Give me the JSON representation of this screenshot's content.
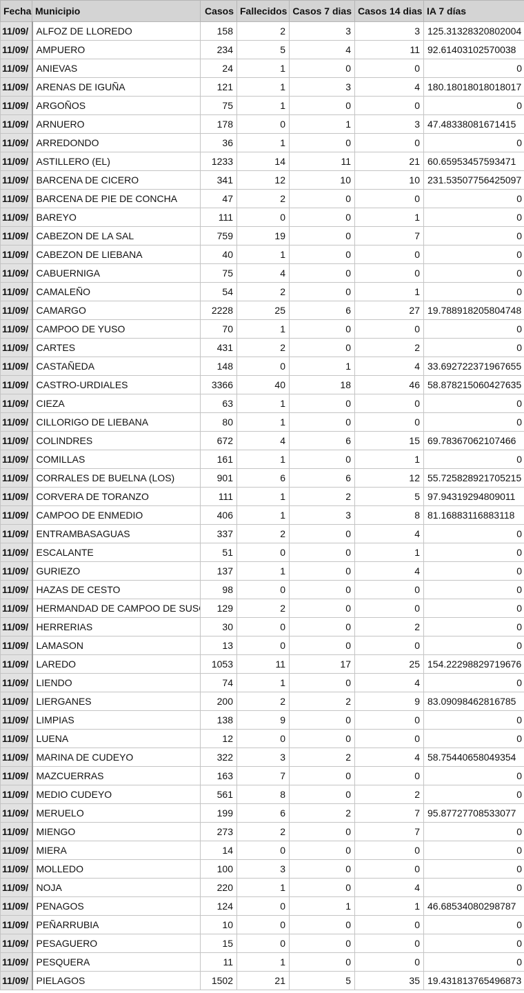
{
  "headers": [
    "Fecha",
    "Municipio",
    "Casos",
    "Fallecidos",
    "Casos 7 dias",
    "Casos 14 dias",
    "IA 7 días"
  ],
  "rows": [
    [
      "11/09/",
      "ALFOZ DE LLOREDO",
      "158",
      "2",
      "3",
      "3",
      "125.31328320802004"
    ],
    [
      "11/09/",
      "AMPUERO",
      "234",
      "5",
      "4",
      "11",
      "92.61403102570038"
    ],
    [
      "11/09/",
      "ANIEVAS",
      "24",
      "1",
      "0",
      "0",
      "0"
    ],
    [
      "11/09/",
      "ARENAS DE IGUÑA",
      "121",
      "1",
      "3",
      "4",
      "180.18018018018017"
    ],
    [
      "11/09/",
      "ARGOÑOS",
      "75",
      "1",
      "0",
      "0",
      "0"
    ],
    [
      "11/09/",
      "ARNUERO",
      "178",
      "0",
      "1",
      "3",
      "47.48338081671415"
    ],
    [
      "11/09/",
      "ARREDONDO",
      "36",
      "1",
      "0",
      "0",
      "0"
    ],
    [
      "11/09/",
      "ASTILLERO (EL)",
      "1233",
      "14",
      "11",
      "21",
      "60.65953457593471"
    ],
    [
      "11/09/",
      "BARCENA DE CICERO",
      "341",
      "12",
      "10",
      "10",
      "231.53507756425097"
    ],
    [
      "11/09/",
      "BARCENA DE PIE DE CONCHA",
      "47",
      "2",
      "0",
      "0",
      "0"
    ],
    [
      "11/09/",
      "BAREYO",
      "111",
      "0",
      "0",
      "1",
      "0"
    ],
    [
      "11/09/",
      "CABEZON DE LA SAL",
      "759",
      "19",
      "0",
      "7",
      "0"
    ],
    [
      "11/09/",
      "CABEZON DE LIEBANA",
      "40",
      "1",
      "0",
      "0",
      "0"
    ],
    [
      "11/09/",
      "CABUERNIGA",
      "75",
      "4",
      "0",
      "0",
      "0"
    ],
    [
      "11/09/",
      "CAMALEÑO",
      "54",
      "2",
      "0",
      "1",
      "0"
    ],
    [
      "11/09/",
      "CAMARGO",
      "2228",
      "25",
      "6",
      "27",
      "19.788918205804748"
    ],
    [
      "11/09/",
      "CAMPOO DE YUSO",
      "70",
      "1",
      "0",
      "0",
      "0"
    ],
    [
      "11/09/",
      "CARTES",
      "431",
      "2",
      "0",
      "2",
      "0"
    ],
    [
      "11/09/",
      "CASTAÑEDA",
      "148",
      "0",
      "1",
      "4",
      "33.692722371967655"
    ],
    [
      "11/09/",
      "CASTRO-URDIALES",
      "3366",
      "40",
      "18",
      "46",
      "58.878215060427635"
    ],
    [
      "11/09/",
      "CIEZA",
      "63",
      "1",
      "0",
      "0",
      "0"
    ],
    [
      "11/09/",
      "CILLORIGO DE LIEBANA",
      "80",
      "1",
      "0",
      "0",
      "0"
    ],
    [
      "11/09/",
      "COLINDRES",
      "672",
      "4",
      "6",
      "15",
      "69.78367062107466"
    ],
    [
      "11/09/",
      "COMILLAS",
      "161",
      "1",
      "0",
      "1",
      "0"
    ],
    [
      "11/09/",
      "CORRALES DE BUELNA (LOS)",
      "901",
      "6",
      "6",
      "12",
      "55.725828921705215"
    ],
    [
      "11/09/",
      "CORVERA DE TORANZO",
      "111",
      "1",
      "2",
      "5",
      "97.94319294809011"
    ],
    [
      "11/09/",
      "CAMPOO DE ENMEDIO",
      "406",
      "1",
      "3",
      "8",
      "81.16883116883118"
    ],
    [
      "11/09/",
      "ENTRAMBASAGUAS",
      "337",
      "2",
      "0",
      "4",
      "0"
    ],
    [
      "11/09/",
      "ESCALANTE",
      "51",
      "0",
      "0",
      "1",
      "0"
    ],
    [
      "11/09/",
      "GURIEZO",
      "137",
      "1",
      "0",
      "4",
      "0"
    ],
    [
      "11/09/",
      "HAZAS DE CESTO",
      "98",
      "0",
      "0",
      "0",
      "0"
    ],
    [
      "11/09/",
      "HERMANDAD DE CAMPOO DE SUSO",
      "129",
      "2",
      "0",
      "0",
      "0"
    ],
    [
      "11/09/",
      "HERRERIAS",
      "30",
      "0",
      "0",
      "2",
      "0"
    ],
    [
      "11/09/",
      "LAMASON",
      "13",
      "0",
      "0",
      "0",
      "0"
    ],
    [
      "11/09/",
      "LAREDO",
      "1053",
      "11",
      "17",
      "25",
      "154.22298829719676"
    ],
    [
      "11/09/",
      "LIENDO",
      "74",
      "1",
      "0",
      "4",
      "0"
    ],
    [
      "11/09/",
      "LIERGANES",
      "200",
      "2",
      "2",
      "9",
      "83.09098462816785"
    ],
    [
      "11/09/",
      "LIMPIAS",
      "138",
      "9",
      "0",
      "0",
      "0"
    ],
    [
      "11/09/",
      "LUENA",
      "12",
      "0",
      "0",
      "0",
      "0"
    ],
    [
      "11/09/",
      "MARINA DE CUDEYO",
      "322",
      "3",
      "2",
      "4",
      "58.75440658049354"
    ],
    [
      "11/09/",
      "MAZCUERRAS",
      "163",
      "7",
      "0",
      "0",
      "0"
    ],
    [
      "11/09/",
      "MEDIO CUDEYO",
      "561",
      "8",
      "0",
      "2",
      "0"
    ],
    [
      "11/09/",
      "MERUELO",
      "199",
      "6",
      "2",
      "7",
      "95.87727708533077"
    ],
    [
      "11/09/",
      "MIENGO",
      "273",
      "2",
      "0",
      "7",
      "0"
    ],
    [
      "11/09/",
      "MIERA",
      "14",
      "0",
      "0",
      "0",
      "0"
    ],
    [
      "11/09/",
      "MOLLEDO",
      "100",
      "3",
      "0",
      "0",
      "0"
    ],
    [
      "11/09/",
      "NOJA",
      "220",
      "1",
      "0",
      "4",
      "0"
    ],
    [
      "11/09/",
      "PENAGOS",
      "124",
      "0",
      "1",
      "1",
      "46.68534080298787"
    ],
    [
      "11/09/",
      "PEÑARRUBIA",
      "10",
      "0",
      "0",
      "0",
      "0"
    ],
    [
      "11/09/",
      "PESAGUERO",
      "15",
      "0",
      "0",
      "0",
      "0"
    ],
    [
      "11/09/",
      "PESQUERA",
      "11",
      "1",
      "0",
      "0",
      "0"
    ],
    [
      "11/09/",
      "PIELAGOS",
      "1502",
      "21",
      "5",
      "35",
      "19.431813765496873"
    ]
  ]
}
